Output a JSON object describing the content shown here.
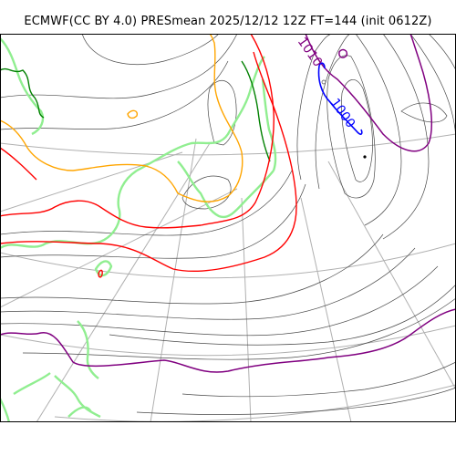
{
  "title": "ECMWF(CC BY 4.0) PRESmean 2025/12/12 12Z FT=144 (init 0612Z)",
  "contour_labels": {
    "low_center": "1000",
    "upper": "1010"
  },
  "colors": {
    "isobar_thin": "#4a4a4a",
    "isobar_1000": "#0000ff",
    "isobar_1008": "#800080",
    "isobar_1012": "#ff0000",
    "isobar_1016": "#ffa500",
    "isobar_1020": "#008000",
    "coastline": "#90ee90",
    "graticule": "#b0b0b0"
  }
}
